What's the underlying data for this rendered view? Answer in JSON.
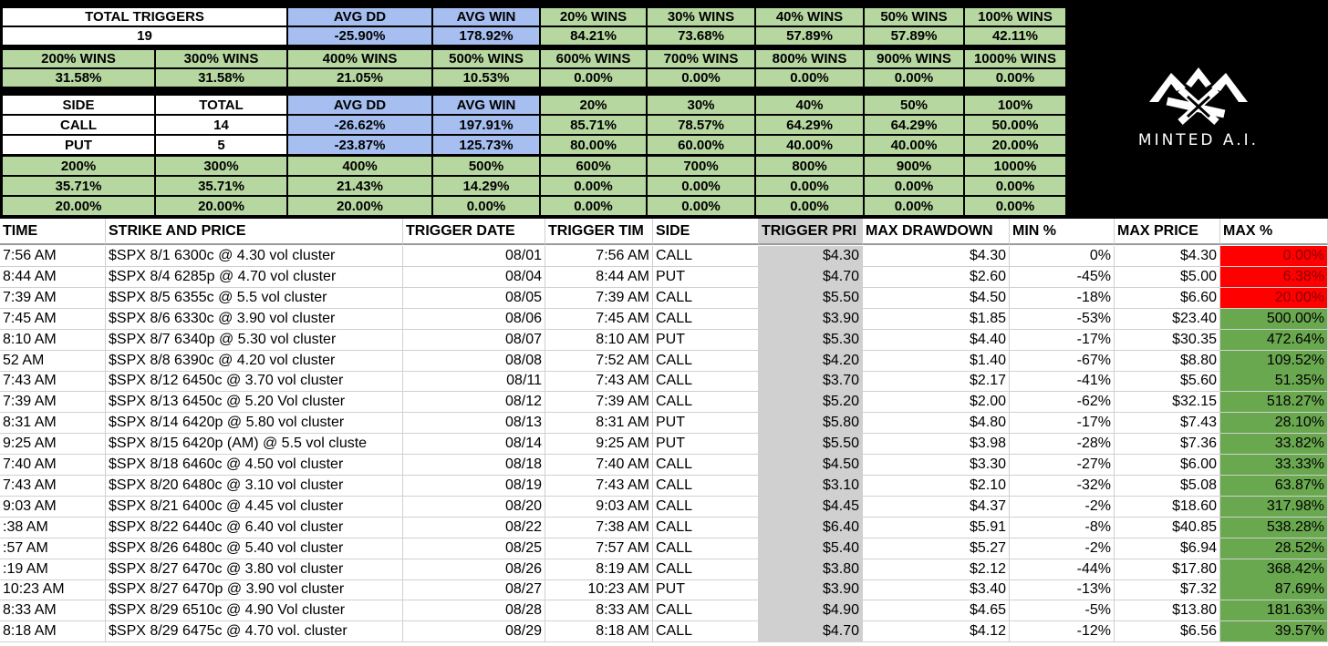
{
  "summary": {
    "block1": {
      "labels": [
        "TOTAL TRIGGERS",
        "AVG DD",
        "AVG WIN",
        "20% WINS",
        "30% WINS",
        "40% WINS",
        "50% WINS",
        "100% WINS"
      ],
      "values": [
        "19",
        "-25.90%",
        "178.92%",
        "84.21%",
        "73.68%",
        "57.89%",
        "57.89%",
        "42.11%"
      ]
    },
    "block2": {
      "labels": [
        "200% WINS",
        "300% WINS",
        "400% WINS",
        "500% WINS",
        "600% WINS",
        "700% WINS",
        "800% WINS",
        "900% WINS",
        "1000% WINS"
      ],
      "values": [
        "31.58%",
        "31.58%",
        "21.05%",
        "10.53%",
        "0.00%",
        "0.00%",
        "0.00%",
        "0.00%",
        "0.00%"
      ]
    },
    "block3": {
      "header": [
        "SIDE",
        "TOTAL",
        "AVG DD",
        "AVG WIN",
        "20%",
        "30%",
        "40%",
        "50%",
        "100%"
      ],
      "rows": [
        [
          "CALL",
          "14",
          "-26.62%",
          "197.91%",
          "85.71%",
          "78.57%",
          "64.29%",
          "64.29%",
          "50.00%"
        ],
        [
          "PUT",
          "5",
          "-23.87%",
          "125.73%",
          "80.00%",
          "60.00%",
          "40.00%",
          "40.00%",
          "20.00%"
        ]
      ]
    },
    "block4": {
      "header": [
        "200%",
        "300%",
        "400%",
        "500%",
        "600%",
        "700%",
        "800%",
        "900%",
        "1000%"
      ],
      "rows": [
        [
          "35.71%",
          "35.71%",
          "21.43%",
          "14.29%",
          "0.00%",
          "0.00%",
          "0.00%",
          "0.00%",
          "0.00%"
        ],
        [
          "20.00%",
          "20.00%",
          "20.00%",
          "0.00%",
          "0.00%",
          "0.00%",
          "0.00%",
          "0.00%",
          "0.00%"
        ]
      ]
    }
  },
  "logo": {
    "text": "MINTED A.I.",
    "icon": "crossed-pickaxes-icon"
  },
  "log": {
    "headers": [
      "TIME",
      "STRIKE AND PRICE",
      "TRIGGER DATE",
      "TRIGGER TIM",
      "SIDE",
      "TRIGGER PRI",
      "MAX DRAWDOWN",
      "MIN %",
      "MAX PRICE",
      "MAX %"
    ],
    "rows": [
      [
        "7:56 AM",
        "$SPX 8/1 6300c @ 4.30 vol cluster",
        "08/01",
        "7:56 AM",
        "CALL",
        "$4.30",
        "$4.30",
        "0%",
        "$4.30",
        "0.00%"
      ],
      [
        "8:44 AM",
        "$SPX 8/4 6285p @ 4.70 vol cluster",
        "08/04",
        "8:44 AM",
        "PUT",
        "$4.70",
        "$2.60",
        "-45%",
        "$5.00",
        "6.38%"
      ],
      [
        "7:39 AM",
        "$SPX 8/5 6355c @ 5.5 vol cluster",
        "08/05",
        "7:39 AM",
        "CALL",
        "$5.50",
        "$4.50",
        "-18%",
        "$6.60",
        "20.00%"
      ],
      [
        "7:45 AM",
        "$SPX 8/6 6330c @ 3.90 vol cluster",
        "08/06",
        "7:45 AM",
        "CALL",
        "$3.90",
        "$1.85",
        "-53%",
        "$23.40",
        "500.00%"
      ],
      [
        "8:10 AM",
        "$SPX 8/7 6340p @ 5.30 vol cluster",
        "08/07",
        "8:10 AM",
        "PUT",
        "$5.30",
        "$4.40",
        "-17%",
        "$30.35",
        "472.64%"
      ],
      [
        "52 AM",
        "$SPX 8/8 6390c @ 4.20 vol cluster",
        "08/08",
        "7:52 AM",
        "CALL",
        "$4.20",
        "$1.40",
        "-67%",
        "$8.80",
        "109.52%"
      ],
      [
        "7:43 AM",
        "$SPX 8/12 6450c @ 3.70 vol cluster",
        "08/11",
        "7:43 AM",
        "CALL",
        "$3.70",
        "$2.17",
        "-41%",
        "$5.60",
        "51.35%"
      ],
      [
        "7:39 AM",
        "$SPX 8/13 6450c @ 5.20 Vol cluster",
        "08/12",
        "7:39 AM",
        "CALL",
        "$5.20",
        "$2.00",
        "-62%",
        "$32.15",
        "518.27%"
      ],
      [
        "8:31 AM",
        "$SPX 8/14 6420p @ 5.80 vol cluster",
        "08/13",
        "8:31 AM",
        "PUT",
        "$5.80",
        "$4.80",
        "-17%",
        "$7.43",
        "28.10%"
      ],
      [
        "9:25 AM",
        "$SPX 8/15 6420p (AM) @ 5.5 vol cluste",
        "08/14",
        "9:25 AM",
        "PUT",
        "$5.50",
        "$3.98",
        "-28%",
        "$7.36",
        "33.82%"
      ],
      [
        "7:40 AM",
        "$SPX 8/18 6460c @ 4.50 vol cluster",
        "08/18",
        "7:40 AM",
        "CALL",
        "$4.50",
        "$3.30",
        "-27%",
        "$6.00",
        "33.33%"
      ],
      [
        "7:43 AM",
        "$SPX 8/20 6480c @ 3.10 vol cluster",
        "08/19",
        "7:43 AM",
        "CALL",
        "$3.10",
        "$2.10",
        "-32%",
        "$5.08",
        "63.87%"
      ],
      [
        "9:03 AM",
        "$SPX 8/21 6400c @ 4.45 vol cluster",
        "08/20",
        "9:03 AM",
        "CALL",
        "$4.45",
        "$4.37",
        "-2%",
        "$18.60",
        "317.98%"
      ],
      [
        ":38 AM",
        "$SPX 8/22 6440c @ 6.40 vol cluster",
        "08/22",
        "7:38 AM",
        "CALL",
        "$6.40",
        "$5.91",
        "-8%",
        "$40.85",
        "538.28%"
      ],
      [
        ":57 AM",
        "$SPX 8/26 6480c @ 5.40 vol cluster",
        "08/25",
        "7:57 AM",
        "CALL",
        "$5.40",
        "$5.27",
        "-2%",
        "$6.94",
        "28.52%"
      ],
      [
        ":19 AM",
        "$SPX 8/27 6470c @ 3.80 vol cluster",
        "08/26",
        "8:19 AM",
        "CALL",
        "$3.80",
        "$2.12",
        "-44%",
        "$17.80",
        "368.42%"
      ],
      [
        "10:23 AM",
        "$SPX 8/27 6470p @ 3.90 vol cluster",
        "08/27",
        "10:23 AM",
        "PUT",
        "$3.90",
        "$3.40",
        "-13%",
        "$7.32",
        "87.69%"
      ],
      [
        "8:33 AM",
        "$SPX 8/29 6510c @ 4.90 Vol cluster",
        "08/28",
        "8:33 AM",
        "CALL",
        "$4.90",
        "$4.65",
        "-5%",
        "$13.80",
        "181.63%"
      ],
      [
        "8:18 AM",
        "$SPX 8/29 6475c @ 4.70 vol. cluster",
        "08/29",
        "8:18 AM",
        "CALL",
        "$4.70",
        "$4.12",
        "-12%",
        "$6.56",
        "39.57%"
      ]
    ],
    "max_pct_colors": [
      "red",
      "red",
      "red",
      "green",
      "green",
      "green",
      "green",
      "green",
      "green",
      "green",
      "green",
      "green",
      "green",
      "green",
      "green",
      "green",
      "green",
      "green",
      "green"
    ]
  },
  "colors": {
    "summary_green": "#b7d7a0",
    "summary_blue": "#a6bef0",
    "highlight_red": "#ff0000",
    "highlight_green": "#6aa84f",
    "trigger_price_gray": "#d0d0d0"
  }
}
